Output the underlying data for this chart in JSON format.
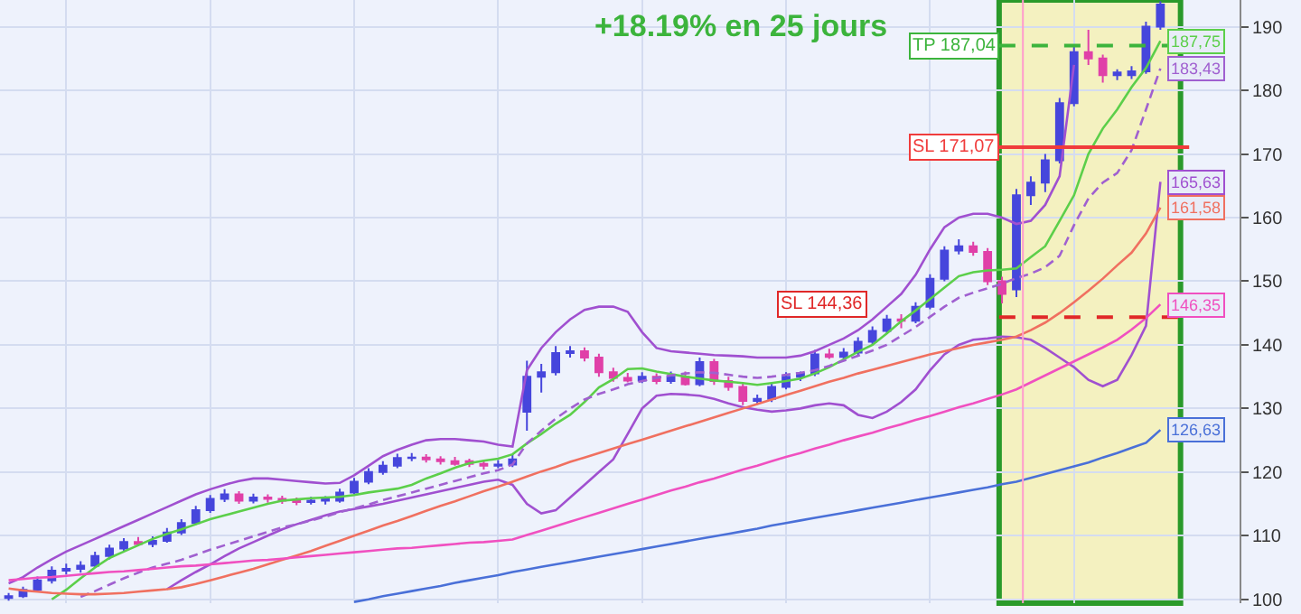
{
  "chart_data": {
    "type": "candlestick",
    "categories": [
      null,
      null,
      null,
      null,
      null,
      null,
      null,
      null,
      null,
      null,
      null,
      null,
      null,
      null,
      null,
      null,
      null,
      null,
      null,
      null,
      null,
      null,
      null,
      null,
      null,
      null,
      null,
      null,
      null,
      null,
      null,
      null,
      null,
      null,
      null,
      null,
      null,
      null,
      null,
      null,
      null,
      null,
      null,
      null,
      null,
      null,
      null,
      null,
      null,
      null,
      null,
      null,
      null,
      null,
      null,
      null,
      null,
      null,
      null,
      null,
      null,
      null,
      null,
      null,
      null,
      null,
      null,
      null,
      null,
      null,
      null,
      null,
      null,
      null,
      null,
      null,
      null,
      null,
      null,
      null,
      null
    ],
    "ohlc": [
      [
        100.2,
        101,
        99.8,
        100.5
      ],
      [
        100.5,
        102,
        100.2,
        101.5
      ],
      [
        101.5,
        103.6,
        101.2,
        103
      ],
      [
        103,
        105.2,
        102.5,
        104.5
      ],
      [
        104.5,
        105.6,
        103.9,
        104.8
      ],
      [
        104.8,
        106,
        104.2,
        105.3
      ],
      [
        105.3,
        107.5,
        105,
        106.8
      ],
      [
        106.8,
        108.6,
        106.3,
        108
      ],
      [
        108,
        109.6,
        107.6,
        109
      ],
      [
        109,
        109.8,
        108.4,
        108.7
      ],
      [
        108.7,
        109.9,
        108.2,
        109.2
      ],
      [
        109.2,
        111.2,
        108.9,
        110.5
      ],
      [
        110.5,
        112.6,
        110.1,
        112
      ],
      [
        112,
        114.7,
        111.7,
        114
      ],
      [
        114,
        116.4,
        113.6,
        115.8
      ],
      [
        115.8,
        117.3,
        115.3,
        116.5
      ],
      [
        116.5,
        117,
        115,
        115.5
      ],
      [
        115.5,
        116.6,
        115.1,
        116
      ],
      [
        116,
        116.5,
        115.2,
        115.8
      ],
      [
        115.8,
        116.3,
        115,
        115.5
      ],
      [
        115.5,
        116,
        114.8,
        115.3
      ],
      [
        115.3,
        116.1,
        114.9,
        115.5
      ],
      [
        115.5,
        116.2,
        114.9,
        116
      ],
      [
        115.5,
        117.4,
        115.2,
        116.8
      ],
      [
        116.8,
        119.1,
        116.5,
        118.5
      ],
      [
        118.5,
        120.6,
        118.1,
        120
      ],
      [
        120,
        121.7,
        119.6,
        121
      ],
      [
        121,
        122.9,
        120.6,
        122.2
      ],
      [
        122.2,
        123,
        121.7,
        122.3
      ],
      [
        122.3,
        122.8,
        121.5,
        122
      ],
      [
        122,
        122.5,
        121.2,
        121.7
      ],
      [
        121.7,
        122.4,
        121,
        121.3
      ],
      [
        121.7,
        122.1,
        120.8,
        121.3
      ],
      [
        121.3,
        121.8,
        120.4,
        121
      ],
      [
        121,
        121.9,
        120.6,
        121.2
      ],
      [
        121.2,
        122.8,
        120.8,
        122
      ],
      [
        129.5,
        137.5,
        126.5,
        135
      ],
      [
        135,
        137,
        132.5,
        135.7
      ],
      [
        135.7,
        139.8,
        135.2,
        138.7
      ],
      [
        138.7,
        139.8,
        138,
        139
      ],
      [
        139,
        139.6,
        137.4,
        138
      ],
      [
        138,
        138.6,
        135,
        135.7
      ],
      [
        135.7,
        136.4,
        134.2,
        134.8
      ],
      [
        134.8,
        135.6,
        134.1,
        134.4
      ],
      [
        134.4,
        135.7,
        134,
        135
      ],
      [
        135,
        135.5,
        133.8,
        134.3
      ],
      [
        134.3,
        135.8,
        133.9,
        135
      ],
      [
        135,
        135.8,
        133.6,
        133.8
      ],
      [
        133.8,
        138,
        133.5,
        137.3
      ],
      [
        137.3,
        137.8,
        133.7,
        134.3
      ],
      [
        134.3,
        135,
        132.8,
        133.4
      ],
      [
        133.4,
        134,
        130.5,
        131.2
      ],
      [
        131.2,
        132.2,
        130.6,
        131.5
      ],
      [
        131.5,
        134,
        131,
        133.4
      ],
      [
        133.4,
        135.7,
        133,
        135
      ],
      [
        135,
        135.8,
        134.3,
        135.5
      ],
      [
        135.5,
        139.2,
        135.1,
        138.5
      ],
      [
        138.5,
        139.4,
        137.8,
        138.1
      ],
      [
        138.1,
        139.5,
        137.6,
        138.8
      ],
      [
        138.8,
        141.2,
        138.3,
        140.5
      ],
      [
        140.5,
        142.9,
        140.1,
        142.2
      ],
      [
        142.2,
        144.7,
        141.8,
        144
      ],
      [
        144,
        144.8,
        142.6,
        143.8
      ],
      [
        143.8,
        146.7,
        143.4,
        146
      ],
      [
        146,
        151.1,
        145.6,
        150.4
      ],
      [
        150.4,
        155.5,
        150,
        154.8
      ],
      [
        154.8,
        156.6,
        154.2,
        155.5
      ],
      [
        155.5,
        156.2,
        154,
        154.6
      ],
      [
        154.6,
        155.2,
        149.4,
        150
      ],
      [
        150,
        150.7,
        146.5,
        148
      ],
      [
        148.7,
        164.5,
        147.5,
        163.5
      ],
      [
        163.5,
        166.5,
        162,
        165.5
      ],
      [
        165.5,
        170,
        164,
        169
      ],
      [
        169,
        178.8,
        168.5,
        178
      ],
      [
        178,
        187,
        177.5,
        186
      ],
      [
        186,
        189.5,
        184,
        185
      ],
      [
        185,
        185.6,
        181.2,
        182.4
      ],
      [
        182.4,
        183.3,
        181.6,
        182.8
      ],
      [
        182.4,
        183.8,
        181.8,
        183
      ],
      [
        183,
        190.8,
        182.6,
        190
      ],
      [
        190,
        194,
        189.5,
        193.5
      ]
    ],
    "colors": [
      "#4646dc",
      "#4646dc",
      "#4646dc",
      "#4646dc",
      "#4646dc",
      "#4646dc",
      "#4646dc",
      "#4646dc",
      "#4646dc",
      "#e040a8",
      "#4646dc",
      "#4646dc",
      "#4646dc",
      "#4646dc",
      "#4646dc",
      "#4646dc",
      "#e040a8",
      "#4646dc",
      "#e040a8",
      "#e040a8",
      "#e040a8",
      "#4646dc",
      "#4646dc",
      "#4646dc",
      "#4646dc",
      "#4646dc",
      "#4646dc",
      "#4646dc",
      "#4646dc",
      "#e040a8",
      "#e040a8",
      "#e040a8",
      "#e040a8",
      "#e040a8",
      "#4646dc",
      "#4646dc",
      "#4646dc",
      "#4646dc",
      "#4646dc",
      "#4646dc",
      "#e040a8",
      "#e040a8",
      "#e040a8",
      "#e040a8",
      "#4646dc",
      "#e040a8",
      "#4646dc",
      "#e040a8",
      "#4646dc",
      "#e040a8",
      "#e040a8",
      "#e040a8",
      "#4646dc",
      "#4646dc",
      "#4646dc",
      "#4646dc",
      "#4646dc",
      "#e040a8",
      "#4646dc",
      "#4646dc",
      "#4646dc",
      "#4646dc",
      "#e040a8",
      "#4646dc",
      "#4646dc",
      "#4646dc",
      "#4646dc",
      "#e040a8",
      "#e040a8",
      "#e040a8",
      "#4646dc",
      "#4646dc",
      "#4646dc",
      "#4646dc",
      "#4646dc",
      "#e040a8",
      "#e040a8",
      "#4646dc",
      "#4646dc",
      "#4646dc",
      "#4646dc"
    ],
    "series": [
      {
        "type": "line",
        "color": "#a050d0",
        "values": [
          102.5,
          103.5,
          105,
          106.3,
          107.5,
          108.5,
          109.5,
          110.5,
          111.5,
          112.5,
          113.5,
          114.5,
          115.5,
          116.5,
          117.3,
          118,
          118.6,
          119,
          119,
          118.8,
          118.6,
          118.4,
          118.2,
          118.3,
          119.5,
          121,
          122.5,
          123.5,
          124.3,
          125,
          125.2,
          125.2,
          125,
          124.8,
          124.3,
          124,
          136,
          139.5,
          142,
          144,
          145.5,
          146,
          146,
          145.2,
          142,
          139.5,
          139,
          138.8,
          138.6,
          138.4,
          138.3,
          138.2,
          138,
          138,
          138,
          138.3,
          139,
          140,
          141,
          142.3,
          144,
          146,
          148,
          151,
          155,
          158.5,
          160,
          160.6,
          160.6,
          160,
          159,
          159.5,
          162,
          166.5,
          184,
          null,
          null,
          null,
          null,
          null,
          null
        ]
      },
      {
        "type": "line",
        "color": "#a050d0",
        "values": [
          null,
          null,
          null,
          null,
          null,
          null,
          null,
          null,
          null,
          null,
          null,
          101.6,
          103,
          104.3,
          105.5,
          106.8,
          108,
          109,
          110,
          111,
          111.8,
          112.5,
          113.2,
          113.8,
          114.2,
          114.6,
          115,
          115.5,
          116,
          116.5,
          117,
          117.5,
          118,
          118.5,
          118.8,
          118,
          115,
          113.5,
          114,
          116,
          118,
          120,
          122,
          126,
          130,
          132,
          132.3,
          132.2,
          132,
          131.5,
          130.8,
          130.2,
          129.8,
          129.5,
          129.7,
          130,
          130.5,
          130.8,
          130.5,
          129,
          128.5,
          129.5,
          131,
          133,
          136,
          138.5,
          140,
          140.8,
          141,
          141.3,
          141.2,
          140.8,
          139.5,
          138,
          136.5,
          134.5,
          133.5,
          134.5,
          138.4,
          143,
          165.63
        ],
        "value_labels": [
          null,
          null,
          null,
          null,
          null,
          null,
          null,
          null,
          null,
          null,
          null,
          null,
          null,
          null,
          null,
          null,
          null,
          null,
          null,
          null,
          null,
          null,
          null,
          null,
          null,
          null,
          null,
          null,
          null,
          null,
          null,
          null,
          null,
          null,
          null,
          null,
          null,
          null,
          null,
          null,
          null,
          null,
          null,
          null,
          null,
          null,
          null,
          null,
          null,
          null,
          null,
          null,
          null,
          null,
          null,
          null,
          null,
          null,
          null,
          null,
          null,
          null,
          null,
          null,
          null,
          null,
          null,
          null,
          null,
          null,
          null,
          null,
          null,
          null,
          null,
          null,
          null,
          null,
          null,
          null,
          "165,63"
        ]
      },
      {
        "type": "line",
        "color": "#5ccf4a",
        "values": [
          null,
          null,
          null,
          100,
          101.5,
          103.3,
          105,
          106.5,
          107.5,
          108.5,
          109.5,
          110.3,
          111,
          111.8,
          112.6,
          113.2,
          113.8,
          114.4,
          115,
          115.5,
          115.7,
          115.9,
          116,
          116.1,
          116.4,
          116.8,
          117.1,
          117.4,
          118,
          119,
          119.8,
          120.7,
          121.4,
          121.8,
          122.1,
          122.8,
          124.5,
          126,
          127.6,
          129,
          131,
          133.3,
          134.6,
          136.2,
          136.3,
          135.8,
          135.4,
          135,
          134.7,
          134.4,
          134.2,
          134,
          133.7,
          134,
          134.3,
          134.7,
          135.5,
          136.5,
          137.7,
          138.9,
          140,
          141.8,
          143.7,
          145.4,
          147.2,
          149,
          150.8,
          151.4,
          151.7,
          151.8,
          152,
          153.8,
          155.5,
          159.5,
          163.5,
          170,
          174,
          177,
          180.5,
          183.5,
          187.75
        ],
        "value_labels": [
          null,
          null,
          null,
          null,
          null,
          null,
          null,
          null,
          null,
          null,
          null,
          null,
          null,
          null,
          null,
          null,
          null,
          null,
          null,
          null,
          null,
          null,
          null,
          null,
          null,
          null,
          null,
          null,
          null,
          null,
          null,
          null,
          null,
          null,
          null,
          null,
          null,
          null,
          null,
          null,
          null,
          null,
          null,
          null,
          null,
          null,
          null,
          null,
          null,
          null,
          null,
          null,
          null,
          null,
          null,
          null,
          null,
          null,
          null,
          null,
          null,
          null,
          null,
          null,
          null,
          null,
          null,
          null,
          null,
          null,
          null,
          null,
          null,
          null,
          null,
          null,
          null,
          null,
          null,
          null,
          "187,75"
        ]
      },
      {
        "type": "line",
        "color": "#a060d0",
        "line_style": "dashed",
        "values": [
          null,
          null,
          null,
          null,
          null,
          100.4,
          101.3,
          102.3,
          103.3,
          104.2,
          105,
          105.6,
          106.2,
          107,
          107.8,
          108.5,
          109.2,
          109.9,
          110.6,
          111.3,
          111.8,
          112.4,
          113,
          113.7,
          114.3,
          114.9,
          115.6,
          116.2,
          116.8,
          117.4,
          118,
          118.6,
          119.2,
          119.8,
          120.3,
          121.2,
          124.5,
          126.5,
          128.4,
          130,
          131.4,
          132.3,
          133,
          133.8,
          134.3,
          134.8,
          135.2,
          135.5,
          135.7,
          135.6,
          135.3,
          135,
          134.8,
          135,
          135.3,
          135.6,
          136,
          136.7,
          137.5,
          138.3,
          139.1,
          140,
          141.4,
          142.8,
          144.4,
          146,
          147.4,
          148.2,
          148.9,
          149.6,
          150.5,
          151.2,
          152.2,
          154,
          158.8,
          163,
          165.5,
          167,
          170.6,
          177,
          183.43
        ],
        "value_labels": [
          null,
          null,
          null,
          null,
          null,
          null,
          null,
          null,
          null,
          null,
          null,
          null,
          null,
          null,
          null,
          null,
          null,
          null,
          null,
          null,
          null,
          null,
          null,
          null,
          null,
          null,
          null,
          null,
          null,
          null,
          null,
          null,
          null,
          null,
          null,
          null,
          null,
          null,
          null,
          null,
          null,
          null,
          null,
          null,
          null,
          null,
          null,
          null,
          null,
          null,
          null,
          null,
          null,
          null,
          null,
          null,
          null,
          null,
          null,
          null,
          null,
          null,
          null,
          null,
          null,
          null,
          null,
          null,
          null,
          null,
          null,
          null,
          null,
          null,
          null,
          null,
          null,
          null,
          null,
          null,
          "183,43"
        ]
      },
      {
        "type": "line",
        "color": "#f07060",
        "values": [
          101.7,
          101.4,
          101.2,
          101,
          100.9,
          100.8,
          100.8,
          100.9,
          101,
          101.2,
          101.4,
          101.6,
          101.9,
          102.4,
          103,
          103.6,
          104.2,
          104.8,
          105.5,
          106.2,
          106.9,
          107.6,
          108.4,
          109.2,
          110,
          110.8,
          111.6,
          112.3,
          113.1,
          113.9,
          114.7,
          115.4,
          116.2,
          117,
          117.7,
          118.5,
          119.3,
          120.1,
          120.8,
          121.6,
          122.3,
          123,
          123.7,
          124.4,
          125.1,
          125.8,
          126.5,
          127.2,
          127.9,
          128.6,
          129.3,
          130,
          130.7,
          131.4,
          132.1,
          132.8,
          133.5,
          134.2,
          134.8,
          135.5,
          136.1,
          136.7,
          137.3,
          137.9,
          138.5,
          139,
          139.5,
          140,
          140.4,
          140.8,
          141.3,
          142.3,
          143.5,
          145,
          146.7,
          148.5,
          150.4,
          152.5,
          154.5,
          157.5,
          161.58
        ],
        "value_labels": [
          null,
          null,
          null,
          null,
          null,
          null,
          null,
          null,
          null,
          null,
          null,
          null,
          null,
          null,
          null,
          null,
          null,
          null,
          null,
          null,
          null,
          null,
          null,
          null,
          null,
          null,
          null,
          null,
          null,
          null,
          null,
          null,
          null,
          null,
          null,
          null,
          null,
          null,
          null,
          null,
          null,
          null,
          null,
          null,
          null,
          null,
          null,
          null,
          null,
          null,
          null,
          null,
          null,
          null,
          null,
          null,
          null,
          null,
          null,
          null,
          null,
          null,
          null,
          null,
          null,
          null,
          null,
          null,
          null,
          null,
          null,
          null,
          null,
          null,
          null,
          null,
          null,
          null,
          null,
          null,
          "161,58"
        ]
      },
      {
        "type": "line",
        "color": "#f050c0",
        "values": [
          103,
          103.2,
          103.4,
          103.5,
          103.7,
          103.9,
          104.1,
          104.3,
          104.4,
          104.6,
          104.8,
          105,
          105.2,
          105.3,
          105.5,
          105.7,
          105.9,
          106.1,
          106.2,
          106.4,
          106.6,
          106.8,
          107,
          107.2,
          107.4,
          107.6,
          107.8,
          108,
          108.1,
          108.3,
          108.5,
          108.7,
          108.9,
          109,
          109.2,
          109.4,
          110.1,
          110.8,
          111.5,
          112.2,
          112.9,
          113.6,
          114.3,
          115,
          115.7,
          116.4,
          117.1,
          117.7,
          118.4,
          119,
          119.7,
          120.4,
          121,
          121.7,
          122.4,
          123,
          123.7,
          124.3,
          125,
          125.6,
          126.2,
          126.9,
          127.5,
          128.2,
          128.8,
          129.5,
          130.2,
          130.8,
          131.5,
          132.2,
          133,
          134.1,
          135.2,
          136.3,
          137.4,
          138.5,
          139.6,
          140.8,
          142.4,
          144.2,
          146.35
        ],
        "value_labels": [
          null,
          null,
          null,
          null,
          null,
          null,
          null,
          null,
          null,
          null,
          null,
          null,
          null,
          null,
          null,
          null,
          null,
          null,
          null,
          null,
          null,
          null,
          null,
          null,
          null,
          null,
          null,
          null,
          null,
          null,
          null,
          null,
          null,
          null,
          null,
          null,
          null,
          null,
          null,
          null,
          null,
          null,
          null,
          null,
          null,
          null,
          null,
          null,
          null,
          null,
          null,
          null,
          null,
          null,
          null,
          null,
          null,
          null,
          null,
          null,
          null,
          null,
          null,
          null,
          null,
          null,
          null,
          null,
          null,
          null,
          null,
          null,
          null,
          null,
          null,
          null,
          null,
          null,
          null,
          null,
          "146,35"
        ]
      },
      {
        "type": "line",
        "color": "#4a70d8",
        "values": [
          null,
          null,
          null,
          null,
          null,
          null,
          null,
          null,
          null,
          null,
          null,
          null,
          null,
          null,
          null,
          null,
          null,
          null,
          null,
          null,
          null,
          null,
          null,
          null,
          99.6,
          100,
          100.5,
          100.9,
          101.3,
          101.7,
          102.1,
          102.6,
          103,
          103.4,
          103.8,
          104.3,
          104.7,
          105.1,
          105.5,
          105.9,
          106.3,
          106.7,
          107.1,
          107.5,
          107.9,
          108.3,
          108.7,
          109.1,
          109.5,
          109.9,
          110.3,
          110.7,
          111.1,
          111.6,
          112,
          112.4,
          112.8,
          113.2,
          113.6,
          114,
          114.4,
          114.8,
          115.2,
          115.6,
          116,
          116.4,
          116.8,
          117.2,
          117.6,
          118.1,
          118.5,
          119.1,
          119.7,
          120.3,
          120.9,
          121.5,
          122.3,
          123,
          123.8,
          124.6,
          126.63
        ],
        "value_labels": [
          null,
          null,
          null,
          null,
          null,
          null,
          null,
          null,
          null,
          null,
          null,
          null,
          null,
          null,
          null,
          null,
          null,
          null,
          null,
          null,
          null,
          null,
          null,
          null,
          null,
          null,
          null,
          null,
          null,
          null,
          null,
          null,
          null,
          null,
          null,
          null,
          null,
          null,
          null,
          null,
          null,
          null,
          null,
          null,
          null,
          null,
          null,
          null,
          null,
          null,
          null,
          null,
          null,
          null,
          null,
          null,
          null,
          null,
          null,
          null,
          null,
          null,
          null,
          null,
          null,
          null,
          null,
          null,
          null,
          null,
          null,
          null,
          null,
          null,
          null,
          null,
          null,
          null,
          null,
          null,
          "126,63"
        ]
      }
    ],
    "ylim": [
      99.4,
      194.2
    ],
    "yticks": [
      100,
      110,
      120,
      130,
      140,
      150,
      160,
      170,
      180,
      190
    ],
    "grid": true,
    "tick_labels": "y",
    "ref_lines": [
      {
        "axis": "y",
        "value": 187.04,
        "label": "TP 187,04",
        "color": "#3cb43c",
        "line_style": "dashed"
      },
      {
        "axis": "y",
        "value": 171.07,
        "label": "SL 171,07",
        "color": "#f03c3c",
        "line_style": "solid"
      },
      {
        "axis": "y",
        "value": 144.36,
        "label": "SL 144,36",
        "color": "#e02828",
        "line_style": "dashed"
      }
    ],
    "annotations": [
      "+18.19% en 25 jours"
    ]
  }
}
